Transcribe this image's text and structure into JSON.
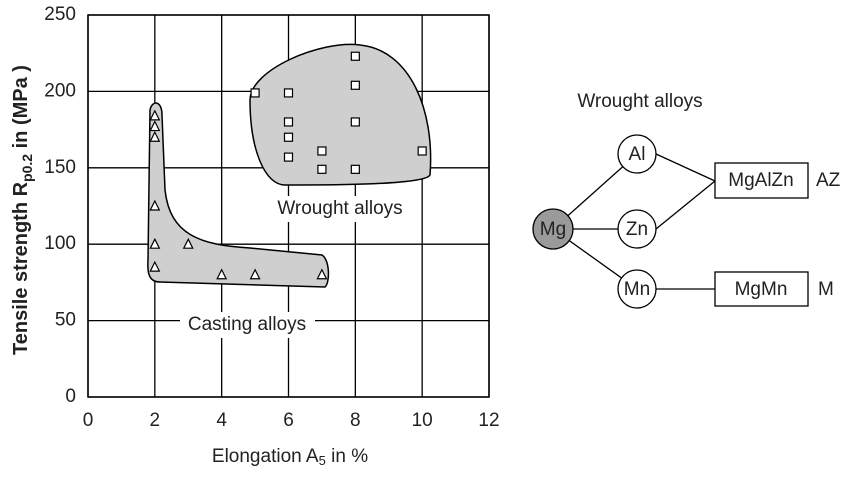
{
  "chart_data": {
    "type": "scatter",
    "xlabel": [
      "Elongation A",
      "5",
      " in %"
    ],
    "ylabel": [
      "Tensile strength R",
      "p0.2",
      " in (MPa )"
    ],
    "xlim": [
      0,
      12
    ],
    "xticks": [
      0,
      2,
      4,
      6,
      8,
      10,
      12
    ],
    "ylim": [
      0,
      250
    ],
    "yticks": [
      0,
      50,
      100,
      150,
      200,
      250
    ],
    "grid": true,
    "series": [
      {
        "name": "Wrought alloys",
        "marker": "square",
        "color": "#000000",
        "x": [
          5,
          6,
          6,
          6,
          6,
          7,
          7,
          8,
          8,
          8,
          8,
          10
        ],
        "values": [
          199,
          199,
          180,
          170,
          157,
          161,
          149,
          223,
          204,
          180,
          149,
          161
        ]
      },
      {
        "name": "Casting alloys",
        "marker": "triangle",
        "color": "#000000",
        "x": [
          2,
          2,
          2,
          2,
          2,
          2,
          3,
          4,
          5,
          7
        ],
        "values": [
          184,
          177,
          170,
          125,
          100,
          85,
          100,
          80,
          80,
          80
        ]
      }
    ]
  },
  "diagram": {
    "title": "Wrought alloys",
    "nodes": [
      "Mg",
      "Al",
      "Zn",
      "Mn",
      "MgAlZn",
      "MgMn"
    ],
    "codes": [
      "AZ",
      "M"
    ]
  }
}
